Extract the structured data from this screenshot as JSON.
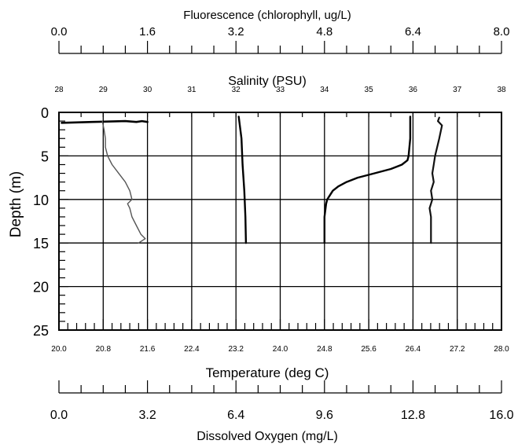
{
  "chart_data": {
    "type": "line",
    "title": "",
    "ylabel": "Depth (m)",
    "y": {
      "label": "Depth (m)",
      "ticks": [
        0,
        5,
        10,
        15,
        20,
        25
      ],
      "range": [
        0,
        25
      ],
      "inverted": true
    },
    "grid": true,
    "axes": {
      "fluorescence": {
        "label": "Fluorescence (chlorophyll, ug/L)",
        "range": [
          0.0,
          8.0
        ],
        "ticks": [
          "0.0",
          "1.6",
          "3.2",
          "4.8",
          "6.4",
          "8.0"
        ],
        "position": "top-outer"
      },
      "salinity": {
        "label": "Salinity (PSU)",
        "range": [
          28,
          38
        ],
        "ticks": [
          "28",
          "29",
          "30",
          "31",
          "32",
          "33",
          "34",
          "35",
          "36",
          "37",
          "38"
        ],
        "position": "top"
      },
      "temperature": {
        "label": "Temperature (deg C)",
        "range": [
          20.0,
          28.0
        ],
        "ticks": [
          "20.0",
          "20.8",
          "21.6",
          "22.4",
          "23.2",
          "24.0",
          "24.8",
          "25.6",
          "26.4",
          "27.2",
          "28.0"
        ],
        "position": "bottom"
      },
      "oxygen": {
        "label": "Dissolved Oxygen (mg/L)",
        "range": [
          0.0,
          16.0
        ],
        "ticks": [
          "0.0",
          "3.2",
          "6.4",
          "9.6",
          "12.8",
          "16.0"
        ],
        "position": "bottom-outer"
      }
    },
    "series": [
      {
        "axis": "fluorescence",
        "depth": [
          1.2,
          1.1,
          1.0,
          1.1,
          1.0,
          1.1
        ],
        "values": [
          0.05,
          0.6,
          1.2,
          1.4,
          1.5,
          1.6
        ]
      },
      {
        "axis": "salinity",
        "depth": [
          1.0,
          2,
          3,
          4,
          5,
          6,
          7,
          8,
          9,
          10,
          10.5,
          11,
          12,
          13,
          14,
          14.5,
          15
        ],
        "values": [
          28.98,
          29.02,
          29.05,
          29.05,
          29.1,
          29.2,
          29.35,
          29.5,
          29.6,
          29.65,
          29.55,
          29.6,
          29.65,
          29.75,
          29.85,
          29.95,
          29.8
        ]
      },
      {
        "axis": "temperature",
        "depth": [
          0.5,
          3,
          6,
          9,
          12,
          15
        ],
        "values": [
          23.25,
          23.3,
          23.32,
          23.35,
          23.37,
          23.38
        ]
      },
      {
        "axis": "temperature",
        "depth": [
          0.5,
          1,
          3,
          5,
          5.5,
          6,
          6.5,
          7,
          7.5,
          8,
          8.5,
          9,
          9.5,
          10,
          10.5,
          11,
          11.5,
          12,
          13,
          15
        ],
        "values": [
          26.35,
          26.35,
          26.35,
          26.32,
          26.3,
          26.2,
          26.0,
          25.7,
          25.4,
          25.2,
          25.05,
          24.95,
          24.9,
          24.85,
          24.83,
          24.82,
          24.81,
          24.8,
          24.8,
          24.8
        ]
      },
      {
        "axis": "oxygen",
        "depth": [
          0.6,
          1,
          1.5,
          3,
          5,
          6,
          7,
          8,
          9,
          10,
          11,
          12,
          13,
          14,
          15
        ],
        "values": [
          13.75,
          13.7,
          13.85,
          13.75,
          13.6,
          13.55,
          13.5,
          13.55,
          13.45,
          13.5,
          13.4,
          13.45,
          13.45,
          13.45,
          13.45
        ]
      }
    ]
  }
}
